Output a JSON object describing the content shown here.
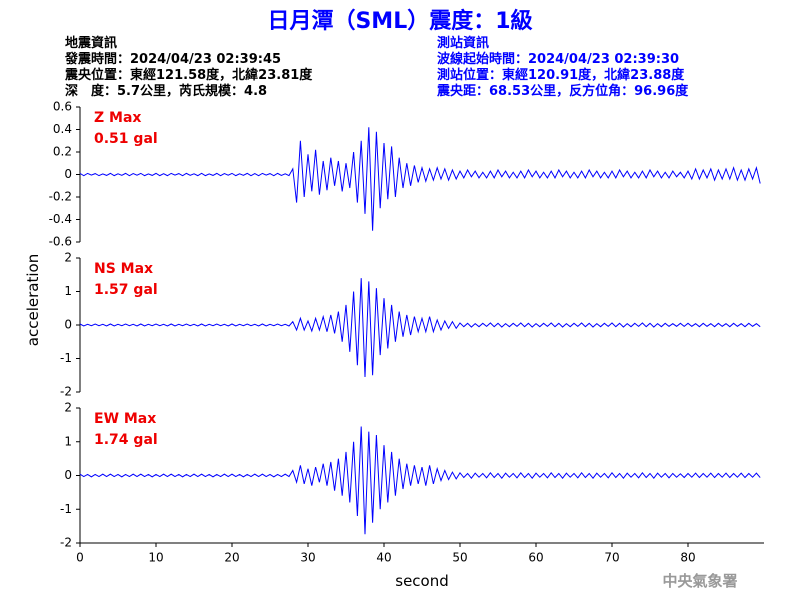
{
  "header": {
    "title": "日月潭（SML）震度：1級",
    "left": [
      "地震資訊",
      "發震時間：2024/04/23 02:39:45",
      "震央位置：東經121.58度，北緯23.81度",
      "深　度：5.7公里，芮氏規模：4.8"
    ],
    "right": [
      "測站資訊",
      "波線起始時間：2024/04/23 02:39:30",
      "測站位置：東經120.91度，北緯23.88度",
      "震央距：68.53公里，反方位角：96.96度"
    ]
  },
  "footer": "中央氣象署",
  "chart_data": [
    {
      "type": "line",
      "annotations": [
        "Z Max",
        "0.51 gal"
      ],
      "xlim": [
        0,
        90
      ],
      "ylim": [
        -0.6,
        0.6
      ],
      "yticks": [
        -0.6,
        -0.4,
        -0.2,
        0,
        0.2,
        0.4,
        0.6
      ],
      "x": [
        0,
        0.5,
        1,
        1.5,
        2,
        2.5,
        3,
        3.5,
        4,
        4.5,
        5,
        5.5,
        6,
        6.5,
        7,
        7.5,
        8,
        8.5,
        9,
        9.5,
        10,
        10.5,
        11,
        11.5,
        12,
        12.5,
        13,
        13.5,
        14,
        14.5,
        15,
        15.5,
        16,
        16.5,
        17,
        17.5,
        18,
        18.5,
        19,
        19.5,
        20,
        20.5,
        21,
        21.5,
        22,
        22.5,
        23,
        23.5,
        24,
        24.5,
        25,
        25.5,
        26,
        26.5,
        27,
        27.5,
        28,
        28.5,
        29,
        29.5,
        30,
        30.5,
        31,
        31.5,
        32,
        32.5,
        33,
        33.5,
        34,
        34.5,
        35,
        35.5,
        36,
        36.5,
        37,
        37.5,
        38,
        38.5,
        39,
        39.5,
        40,
        40.5,
        41,
        41.5,
        42,
        42.5,
        43,
        43.5,
        44,
        44.5,
        45,
        45.5,
        46,
        46.5,
        47,
        47.5,
        48,
        48.5,
        49,
        49.5,
        50,
        50.5,
        51,
        51.5,
        52,
        52.5,
        53,
        53.5,
        54,
        54.5,
        55,
        55.5,
        56,
        56.5,
        57,
        57.5,
        58,
        58.5,
        59,
        59.5,
        60,
        60.5,
        61,
        61.5,
        62,
        62.5,
        63,
        63.5,
        64,
        64.5,
        65,
        65.5,
        66,
        66.5,
        67,
        67.5,
        68,
        68.5,
        69,
        69.5,
        70,
        70.5,
        71,
        71.5,
        72,
        72.5,
        73,
        73.5,
        74,
        74.5,
        75,
        75.5,
        76,
        76.5,
        77,
        77.5,
        78,
        78.5,
        79,
        79.5,
        80,
        80.5,
        81,
        81.5,
        82,
        82.5,
        83,
        83.5,
        84,
        84.5,
        85,
        85.5,
        86,
        86.5,
        87,
        87.5,
        88,
        88.5,
        89,
        89.5
      ],
      "series": [
        {
          "color": "#0000ff",
          "values": [
            0.01,
            -0.01,
            0.01,
            -0.005,
            0.008,
            -0.01,
            0.005,
            -0.008,
            0.01,
            -0.01,
            0.006,
            -0.007,
            0.01,
            -0.01,
            0.008,
            -0.006,
            0.01,
            -0.01,
            0.005,
            -0.008,
            0.01,
            -0.01,
            0.007,
            -0.01,
            0.01,
            -0.005,
            0.008,
            -0.01,
            0.01,
            -0.007,
            0.006,
            -0.01,
            0.01,
            -0.01,
            0.005,
            -0.008,
            0.01,
            -0.01,
            0.008,
            -0.006,
            0.01,
            -0.01,
            0.006,
            -0.007,
            0.01,
            -0.01,
            0.008,
            -0.01,
            0.01,
            -0.005,
            0.008,
            -0.01,
            0.01,
            -0.008,
            0.006,
            -0.01,
            0.05,
            -0.25,
            0.3,
            -0.2,
            0.18,
            -0.15,
            0.22,
            -0.18,
            0.12,
            -0.14,
            0.15,
            -0.1,
            0.12,
            -0.15,
            0.1,
            -0.12,
            0.2,
            -0.25,
            0.3,
            -0.35,
            0.42,
            -0.5,
            0.38,
            -0.3,
            0.28,
            -0.22,
            0.25,
            -0.2,
            0.15,
            -0.12,
            0.1,
            -0.1,
            0.08,
            -0.07,
            0.06,
            -0.06,
            0.05,
            -0.05,
            0.06,
            -0.04,
            0.05,
            -0.05,
            0.04,
            -0.04,
            0.03,
            -0.03,
            0.04,
            -0.02,
            0.03,
            -0.03,
            0.02,
            -0.03,
            0.03,
            -0.03,
            0.04,
            -0.02,
            0.03,
            -0.03,
            0.02,
            -0.03,
            0.03,
            -0.03,
            0.04,
            -0.02,
            0.03,
            -0.03,
            0.02,
            -0.03,
            0.03,
            -0.03,
            0.04,
            -0.02,
            0.03,
            -0.03,
            0.02,
            -0.03,
            0.03,
            -0.03,
            0.04,
            -0.02,
            0.03,
            -0.03,
            0.02,
            -0.03,
            0.03,
            -0.03,
            0.04,
            -0.02,
            0.03,
            -0.03,
            0.02,
            -0.03,
            0.03,
            -0.03,
            0.04,
            -0.02,
            0.03,
            -0.03,
            0.02,
            -0.03,
            0.03,
            -0.02,
            0.02,
            -0.03,
            0.03,
            -0.04,
            0.05,
            -0.04,
            0.04,
            -0.03,
            0.05,
            -0.05,
            0.04,
            -0.04,
            0.05,
            -0.04,
            0.06,
            -0.05,
            0.04,
            -0.05,
            0.05,
            -0.04,
            0.06,
            -0.08
          ]
        }
      ]
    },
    {
      "type": "line",
      "annotations": [
        "NS Max",
        "1.57 gal"
      ],
      "ylabel": "acceleration",
      "xlim": [
        0,
        90
      ],
      "ylim": [
        -2,
        2
      ],
      "yticks": [
        -2,
        -1,
        0,
        1,
        2
      ],
      "x": [
        0,
        0.5,
        1,
        1.5,
        2,
        2.5,
        3,
        3.5,
        4,
        4.5,
        5,
        5.5,
        6,
        6.5,
        7,
        7.5,
        8,
        8.5,
        9,
        9.5,
        10,
        10.5,
        11,
        11.5,
        12,
        12.5,
        13,
        13.5,
        14,
        14.5,
        15,
        15.5,
        16,
        16.5,
        17,
        17.5,
        18,
        18.5,
        19,
        19.5,
        20,
        20.5,
        21,
        21.5,
        22,
        22.5,
        23,
        23.5,
        24,
        24.5,
        25,
        25.5,
        26,
        26.5,
        27,
        27.5,
        28,
        28.5,
        29,
        29.5,
        30,
        30.5,
        31,
        31.5,
        32,
        32.5,
        33,
        33.5,
        34,
        34.5,
        35,
        35.5,
        36,
        36.5,
        37,
        37.5,
        38,
        38.5,
        39,
        39.5,
        40,
        40.5,
        41,
        41.5,
        42,
        42.5,
        43,
        43.5,
        44,
        44.5,
        45,
        45.5,
        46,
        46.5,
        47,
        47.5,
        48,
        48.5,
        49,
        49.5,
        50,
        50.5,
        51,
        51.5,
        52,
        52.5,
        53,
        53.5,
        54,
        54.5,
        55,
        55.5,
        56,
        56.5,
        57,
        57.5,
        58,
        58.5,
        59,
        59.5,
        60,
        60.5,
        61,
        61.5,
        62,
        62.5,
        63,
        63.5,
        64,
        64.5,
        65,
        65.5,
        66,
        66.5,
        67,
        67.5,
        68,
        68.5,
        69,
        69.5,
        70,
        70.5,
        71,
        71.5,
        72,
        72.5,
        73,
        73.5,
        74,
        74.5,
        75,
        75.5,
        76,
        76.5,
        77,
        77.5,
        78,
        78.5,
        79,
        79.5,
        80,
        80.5,
        81,
        81.5,
        82,
        82.5,
        83,
        83.5,
        84,
        84.5,
        85,
        85.5,
        86,
        86.5,
        87,
        87.5,
        88,
        88.5,
        89,
        89.5
      ],
      "series": [
        {
          "color": "#0000ff",
          "values": [
            0.03,
            -0.03,
            0.02,
            -0.02,
            0.03,
            -0.02,
            0.02,
            -0.03,
            0.03,
            -0.03,
            0.02,
            -0.02,
            0.03,
            -0.02,
            0.02,
            -0.03,
            0.03,
            -0.03,
            0.02,
            -0.02,
            0.03,
            -0.02,
            0.02,
            -0.03,
            0.03,
            -0.03,
            0.02,
            -0.02,
            0.03,
            -0.02,
            0.02,
            -0.03,
            0.03,
            -0.03,
            0.02,
            -0.02,
            0.03,
            -0.02,
            0.02,
            -0.03,
            0.03,
            -0.03,
            0.02,
            -0.02,
            0.03,
            -0.02,
            0.02,
            -0.03,
            0.03,
            -0.03,
            0.02,
            -0.02,
            0.03,
            -0.02,
            0.02,
            -0.03,
            0.1,
            -0.15,
            0.2,
            -0.15,
            0.12,
            -0.18,
            0.2,
            -0.15,
            0.25,
            -0.2,
            0.3,
            -0.25,
            0.4,
            -0.5,
            0.6,
            -0.8,
            1.0,
            -1.2,
            1.4,
            -1.55,
            1.3,
            -1.5,
            1.1,
            -0.9,
            0.8,
            -0.7,
            0.6,
            -0.5,
            0.4,
            -0.35,
            0.3,
            -0.3,
            0.25,
            -0.2,
            0.2,
            -0.2,
            0.25,
            -0.2,
            0.15,
            -0.15,
            0.12,
            -0.1,
            0.1,
            -0.1,
            0.06,
            -0.05,
            0.05,
            -0.06,
            0.04,
            -0.05,
            0.05,
            -0.04,
            0.06,
            -0.05,
            0.05,
            -0.06,
            0.04,
            -0.05,
            0.05,
            -0.04,
            0.06,
            -0.05,
            0.05,
            -0.06,
            0.04,
            -0.05,
            0.05,
            -0.04,
            0.06,
            -0.05,
            0.05,
            -0.06,
            0.04,
            -0.05,
            0.05,
            -0.04,
            0.06,
            -0.05,
            0.05,
            -0.06,
            0.04,
            -0.05,
            0.05,
            -0.04,
            0.06,
            -0.05,
            0.05,
            -0.06,
            0.04,
            -0.05,
            0.05,
            -0.04,
            0.06,
            -0.05,
            0.05,
            -0.06,
            0.04,
            -0.05,
            0.05,
            -0.04,
            0.04,
            -0.04,
            0.05,
            -0.04,
            0.05,
            -0.04,
            0.04,
            -0.05,
            0.05,
            -0.04,
            0.04,
            -0.05,
            0.05,
            -0.04,
            0.04,
            -0.05,
            0.05,
            -0.04,
            0.04,
            -0.05,
            0.05,
            -0.04,
            0.04,
            -0.05
          ]
        }
      ]
    },
    {
      "type": "line",
      "annotations": [
        "EW Max",
        "1.74 gal"
      ],
      "xlabel": "second",
      "xlim": [
        0,
        90
      ],
      "xticks": [
        0,
        10,
        20,
        30,
        40,
        50,
        60,
        70,
        80
      ],
      "ylim": [
        -2,
        2
      ],
      "yticks": [
        -2,
        -1,
        0,
        1,
        2
      ],
      "x": [
        0,
        0.5,
        1,
        1.5,
        2,
        2.5,
        3,
        3.5,
        4,
        4.5,
        5,
        5.5,
        6,
        6.5,
        7,
        7.5,
        8,
        8.5,
        9,
        9.5,
        10,
        10.5,
        11,
        11.5,
        12,
        12.5,
        13,
        13.5,
        14,
        14.5,
        15,
        15.5,
        16,
        16.5,
        17,
        17.5,
        18,
        18.5,
        19,
        19.5,
        20,
        20.5,
        21,
        21.5,
        22,
        22.5,
        23,
        23.5,
        24,
        24.5,
        25,
        25.5,
        26,
        26.5,
        27,
        27.5,
        28,
        28.5,
        29,
        29.5,
        30,
        30.5,
        31,
        31.5,
        32,
        32.5,
        33,
        33.5,
        34,
        34.5,
        35,
        35.5,
        36,
        36.5,
        37,
        37.5,
        38,
        38.5,
        39,
        39.5,
        40,
        40.5,
        41,
        41.5,
        42,
        42.5,
        43,
        43.5,
        44,
        44.5,
        45,
        45.5,
        46,
        46.5,
        47,
        47.5,
        48,
        48.5,
        49,
        49.5,
        50,
        50.5,
        51,
        51.5,
        52,
        52.5,
        53,
        53.5,
        54,
        54.5,
        55,
        55.5,
        56,
        56.5,
        57,
        57.5,
        58,
        58.5,
        59,
        59.5,
        60,
        60.5,
        61,
        61.5,
        62,
        62.5,
        63,
        63.5,
        64,
        64.5,
        65,
        65.5,
        66,
        66.5,
        67,
        67.5,
        68,
        68.5,
        69,
        69.5,
        70,
        70.5,
        71,
        71.5,
        72,
        72.5,
        73,
        73.5,
        74,
        74.5,
        75,
        75.5,
        76,
        76.5,
        77,
        77.5,
        78,
        78.5,
        79,
        79.5,
        80,
        80.5,
        81,
        81.5,
        82,
        82.5,
        83,
        83.5,
        84,
        84.5,
        85,
        85.5,
        86,
        86.5,
        87,
        87.5,
        88,
        88.5,
        89,
        89.5
      ],
      "series": [
        {
          "color": "#0000ff",
          "values": [
            0.04,
            -0.03,
            0.03,
            -0.04,
            0.03,
            -0.03,
            0.04,
            -0.03,
            0.04,
            -0.03,
            0.03,
            -0.04,
            0.03,
            -0.03,
            0.04,
            -0.03,
            0.04,
            -0.03,
            0.03,
            -0.04,
            0.03,
            -0.03,
            0.04,
            -0.03,
            0.04,
            -0.03,
            0.03,
            -0.04,
            0.03,
            -0.03,
            0.04,
            -0.03,
            0.04,
            -0.03,
            0.03,
            -0.04,
            0.03,
            -0.03,
            0.04,
            -0.03,
            0.04,
            -0.03,
            0.03,
            -0.04,
            0.03,
            -0.03,
            0.04,
            -0.03,
            0.04,
            -0.03,
            0.03,
            -0.04,
            0.03,
            -0.03,
            0.04,
            -0.03,
            0.15,
            -0.2,
            0.3,
            -0.25,
            0.2,
            -0.3,
            0.25,
            -0.2,
            0.35,
            -0.3,
            0.4,
            -0.45,
            0.5,
            -0.6,
            0.7,
            -0.8,
            1.0,
            -1.2,
            1.45,
            -1.74,
            1.3,
            -1.4,
            1.2,
            -1.0,
            0.9,
            -0.8,
            0.7,
            -0.6,
            0.5,
            -0.4,
            0.35,
            -0.3,
            0.3,
            -0.25,
            0.25,
            -0.3,
            0.3,
            -0.25,
            0.2,
            -0.15,
            0.15,
            -0.12,
            0.1,
            -0.1,
            0.08,
            -0.06,
            0.06,
            -0.08,
            0.07,
            -0.05,
            0.06,
            -0.07,
            0.08,
            -0.06,
            0.06,
            -0.08,
            0.07,
            -0.05,
            0.06,
            -0.07,
            0.08,
            -0.06,
            0.06,
            -0.08,
            0.07,
            -0.05,
            0.06,
            -0.07,
            0.08,
            -0.06,
            0.06,
            -0.08,
            0.07,
            -0.05,
            0.06,
            -0.07,
            0.08,
            -0.06,
            0.06,
            -0.08,
            0.07,
            -0.05,
            0.06,
            -0.07,
            0.08,
            -0.06,
            0.06,
            -0.08,
            0.07,
            -0.05,
            0.06,
            -0.07,
            0.08,
            -0.06,
            0.06,
            -0.08,
            0.07,
            -0.05,
            0.06,
            -0.07,
            0.06,
            -0.05,
            0.05,
            -0.06,
            0.06,
            -0.05,
            0.07,
            -0.06,
            0.06,
            -0.05,
            0.07,
            -0.06,
            0.06,
            -0.05,
            0.07,
            -0.06,
            0.06,
            -0.05,
            0.07,
            -0.06,
            0.06,
            -0.05,
            0.07,
            -0.06
          ]
        }
      ]
    }
  ]
}
